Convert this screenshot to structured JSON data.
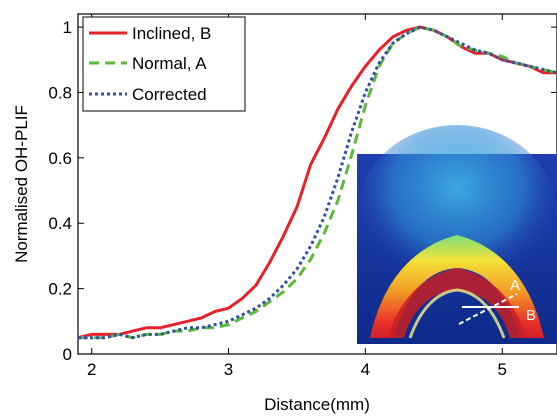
{
  "chart_data": {
    "type": "line",
    "xlabel": "Distance(mm)",
    "ylabel": "Normalised OH-PLIF",
    "xlim": [
      1.9,
      5.4
    ],
    "ylim": [
      0,
      1.04
    ],
    "xticks": [
      2,
      3,
      4,
      5
    ],
    "xtick_labels": [
      "2",
      "3",
      "4",
      "5"
    ],
    "yticks": [
      0,
      0.2,
      0.4,
      0.6,
      0.8,
      1
    ],
    "ytick_labels": [
      "0",
      "0.2",
      "0.4",
      "0.6",
      "0.8",
      "1"
    ],
    "grid": false,
    "legend_position": "top-left",
    "series": [
      {
        "name": "Inclined, B",
        "color": "#e8202a",
        "dash": "solid",
        "x": [
          1.9,
          2.0,
          2.1,
          2.2,
          2.3,
          2.4,
          2.5,
          2.6,
          2.7,
          2.8,
          2.9,
          3.0,
          3.1,
          3.2,
          3.3,
          3.4,
          3.5,
          3.6,
          3.7,
          3.8,
          3.9,
          4.0,
          4.1,
          4.2,
          4.3,
          4.4,
          4.5,
          4.6,
          4.7,
          4.8,
          4.9,
          5.0,
          5.1,
          5.2,
          5.3,
          5.4
        ],
        "y": [
          0.05,
          0.06,
          0.06,
          0.06,
          0.07,
          0.08,
          0.08,
          0.09,
          0.1,
          0.11,
          0.13,
          0.14,
          0.17,
          0.21,
          0.28,
          0.36,
          0.45,
          0.58,
          0.66,
          0.75,
          0.82,
          0.88,
          0.93,
          0.97,
          0.99,
          1.0,
          0.99,
          0.97,
          0.94,
          0.92,
          0.92,
          0.9,
          0.89,
          0.88,
          0.86,
          0.86
        ]
      },
      {
        "name": "Normal, A",
        "color": "#5cb83a",
        "dash": "dashed",
        "x": [
          1.9,
          2.0,
          2.1,
          2.2,
          2.3,
          2.4,
          2.5,
          2.6,
          2.7,
          2.8,
          2.9,
          3.0,
          3.1,
          3.2,
          3.3,
          3.4,
          3.5,
          3.6,
          3.7,
          3.8,
          3.9,
          4.0,
          4.1,
          4.2,
          4.3,
          4.4,
          4.5,
          4.6,
          4.7,
          4.8,
          4.9,
          5.0,
          5.1,
          5.2,
          5.3,
          5.4
        ],
        "y": [
          0.05,
          0.05,
          0.05,
          0.06,
          0.05,
          0.06,
          0.06,
          0.07,
          0.07,
          0.08,
          0.08,
          0.09,
          0.11,
          0.13,
          0.16,
          0.19,
          0.23,
          0.29,
          0.37,
          0.47,
          0.61,
          0.76,
          0.88,
          0.95,
          0.98,
          1.0,
          0.99,
          0.97,
          0.94,
          0.93,
          0.92,
          0.91,
          0.89,
          0.88,
          0.87,
          0.86
        ]
      },
      {
        "name": "Corrected",
        "color": "#2e4fa3",
        "dash": "dotted",
        "x": [
          1.9,
          2.0,
          2.1,
          2.2,
          2.3,
          2.4,
          2.5,
          2.6,
          2.7,
          2.8,
          2.9,
          3.0,
          3.1,
          3.2,
          3.3,
          3.4,
          3.5,
          3.6,
          3.7,
          3.8,
          3.9,
          4.0,
          4.1,
          4.2,
          4.3,
          4.4,
          4.5,
          4.6,
          4.7,
          4.8,
          4.9,
          5.0,
          5.1,
          5.2,
          5.3,
          5.4
        ],
        "y": [
          0.05,
          0.05,
          0.05,
          0.06,
          0.05,
          0.06,
          0.06,
          0.07,
          0.08,
          0.08,
          0.09,
          0.1,
          0.12,
          0.14,
          0.17,
          0.21,
          0.26,
          0.33,
          0.42,
          0.54,
          0.68,
          0.8,
          0.89,
          0.95,
          0.98,
          1.0,
          0.99,
          0.97,
          0.95,
          0.93,
          0.92,
          0.9,
          0.89,
          0.88,
          0.87,
          0.86
        ]
      }
    ]
  },
  "inset": {
    "label_a": "A",
    "label_b": "B",
    "background_color": "#1a3aa8",
    "line_a_color": "#ffffff",
    "line_b_color": "#ffffff"
  }
}
